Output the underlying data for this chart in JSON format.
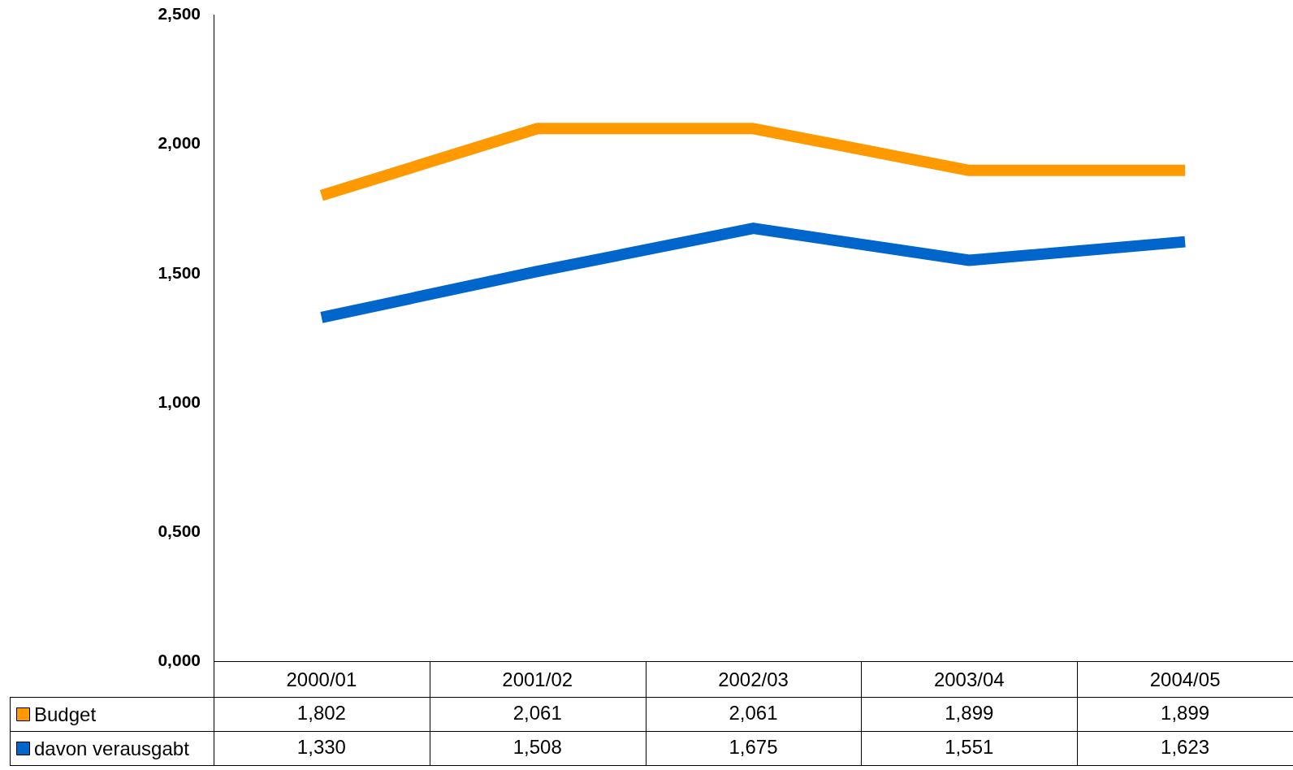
{
  "chart_data": {
    "type": "line",
    "categories": [
      "2000/01",
      "2001/02",
      "2002/03",
      "2003/04",
      "2004/05"
    ],
    "series": [
      {
        "name": "Budget",
        "color": "#ff9900",
        "values": [
          1.802,
          2.061,
          2.061,
          1.899,
          1.899
        ],
        "value_labels": [
          "1,802",
          "2,061",
          "2,061",
          "1,899",
          "1,899"
        ]
      },
      {
        "name": "davon verausgabt",
        "color": "#0066cc",
        "values": [
          1.33,
          1.508,
          1.675,
          1.551,
          1.623
        ],
        "value_labels": [
          "1,330",
          "1,508",
          "1,675",
          "1,551",
          "1,623"
        ]
      }
    ],
    "ylim": [
      0,
      2.5
    ],
    "yticks": [
      {
        "value": 0,
        "label": "0,000"
      },
      {
        "value": 0.5,
        "label": "0,500"
      },
      {
        "value": 1,
        "label": "1,000"
      },
      {
        "value": 1.5,
        "label": "1,500"
      },
      {
        "value": 2,
        "label": "2,000"
      },
      {
        "value": 2.5,
        "label": "2,500"
      }
    ],
    "grid": false,
    "legend": "bottom left",
    "marker": "none",
    "line_style": "solid"
  }
}
